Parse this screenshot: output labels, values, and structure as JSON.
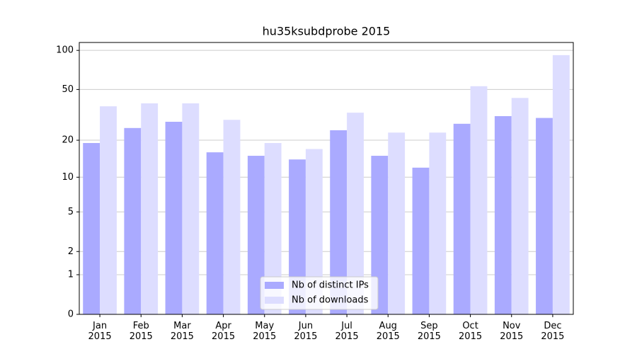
{
  "chart_data": {
    "type": "bar",
    "title": "hu35ksubdprobe 2015",
    "yscale": "log1p",
    "categories": [
      "Jan\n2015",
      "Feb\n2015",
      "Mar\n2015",
      "Apr\n2015",
      "May\n2015",
      "Jun\n2015",
      "Jul\n2015",
      "Aug\n2015",
      "Sep\n2015",
      "Oct\n2015",
      "Nov\n2015",
      "Dec\n2015"
    ],
    "series": [
      {
        "name": "Nb of distinct IPs",
        "color": "#aaaaff",
        "values": [
          19,
          25,
          28,
          16,
          15,
          14,
          24,
          15,
          12,
          27,
          31,
          30
        ]
      },
      {
        "name": "Nb of downloads",
        "color": "#ddddff",
        "values": [
          37,
          39,
          39,
          29,
          19,
          17,
          33,
          23,
          23,
          53,
          43,
          92
        ]
      }
    ],
    "ylim": [
      0,
      115
    ],
    "yticks": [
      0,
      1,
      2,
      5,
      10,
      20,
      50,
      100
    ],
    "grid": true,
    "legend": "lower center"
  }
}
